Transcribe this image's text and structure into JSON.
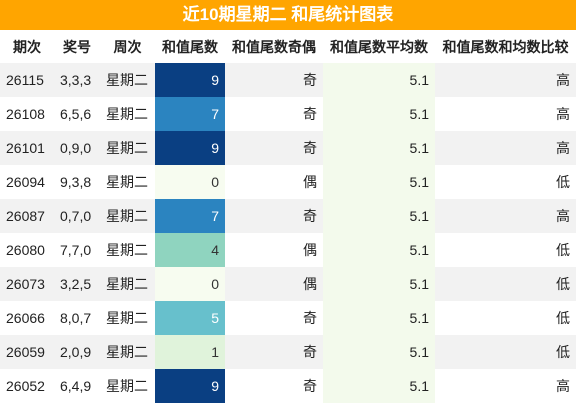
{
  "header": {
    "title": "近10期星期二 和尾统计图表"
  },
  "table": {
    "columns": [
      "期次",
      "奖号",
      "周次",
      "和值尾数",
      "和值尾数奇偶",
      "和值尾数平均数",
      "和值尾数和均数比较"
    ],
    "rows": [
      [
        "26115",
        "3,3,3",
        "星期二",
        "9",
        "奇",
        "5.1",
        "高"
      ],
      [
        "26108",
        "6,5,6",
        "星期二",
        "7",
        "奇",
        "5.1",
        "高"
      ],
      [
        "26101",
        "0,9,0",
        "星期二",
        "9",
        "奇",
        "5.1",
        "高"
      ],
      [
        "26094",
        "9,3,8",
        "星期二",
        "0",
        "偶",
        "5.1",
        "低"
      ],
      [
        "26087",
        "0,7,0",
        "星期二",
        "7",
        "奇",
        "5.1",
        "高"
      ],
      [
        "26080",
        "7,7,0",
        "星期二",
        "4",
        "偶",
        "5.1",
        "低"
      ],
      [
        "26073",
        "3,2,5",
        "星期二",
        "0",
        "偶",
        "5.1",
        "低"
      ],
      [
        "26066",
        "8,0,7",
        "星期二",
        "5",
        "奇",
        "5.1",
        "低"
      ],
      [
        "26059",
        "2,0,9",
        "星期二",
        "1",
        "奇",
        "5.1",
        "低"
      ],
      [
        "26052",
        "6,4,9",
        "星期二",
        "9",
        "奇",
        "5.1",
        "高"
      ]
    ],
    "tail_colors": {
      "0": "#f7fcf0",
      "1": "#e0f3db",
      "4": "#8fd4bf",
      "5": "#67c0cc",
      "7": "#2b84c0",
      "9": "#0a3f82"
    },
    "tail_dark_text": [
      "0",
      "1",
      "4"
    ],
    "average_color": "#f3faec",
    "stripe_color": "#f2f2f2"
  }
}
